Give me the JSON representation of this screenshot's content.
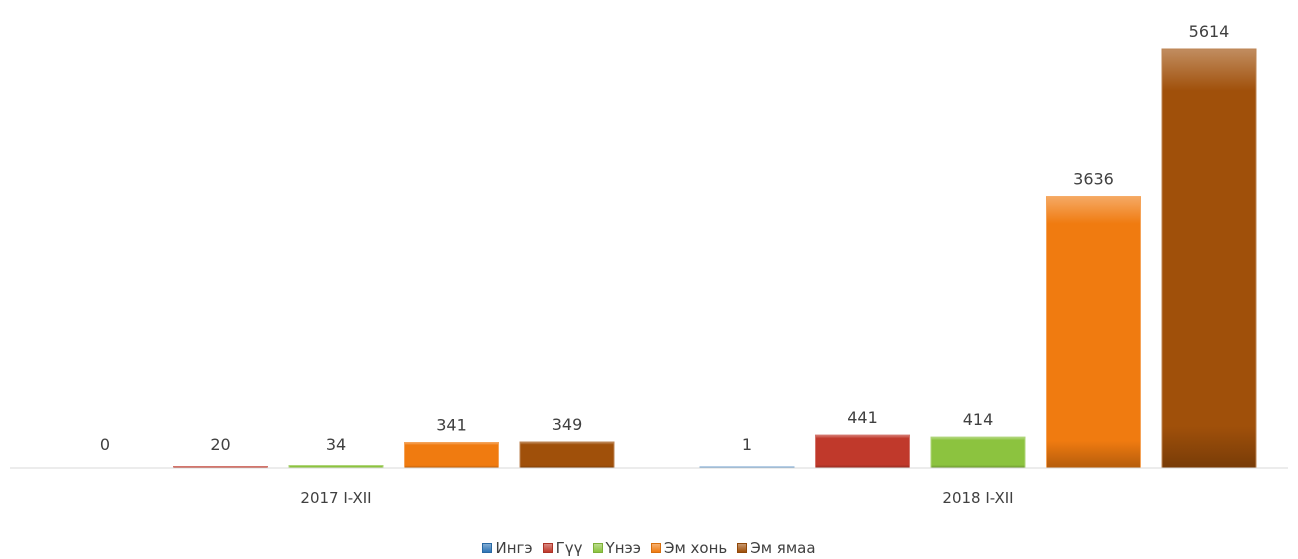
{
  "chart_data": {
    "type": "bar",
    "categories": [
      "2017 I-XII",
      "2018 I-XII"
    ],
    "series": [
      {
        "name": "Ингэ",
        "values": [
          0,
          1
        ],
        "color": "#2e75b6"
      },
      {
        "name": "Гүү",
        "values": [
          20,
          441
        ],
        "color": "#c0392b"
      },
      {
        "name": "Үнээ",
        "values": [
          34,
          414
        ],
        "color": "#8cc33f"
      },
      {
        "name": "Эм хонь",
        "values": [
          341,
          3636
        ],
        "color": "#f07b10"
      },
      {
        "name": "Эм ямаа",
        "values": [
          349,
          5614
        ],
        "color": "#a0500a"
      }
    ],
    "ylim": [
      0,
      5614
    ],
    "legend_position": "bottom",
    "grid": false
  }
}
